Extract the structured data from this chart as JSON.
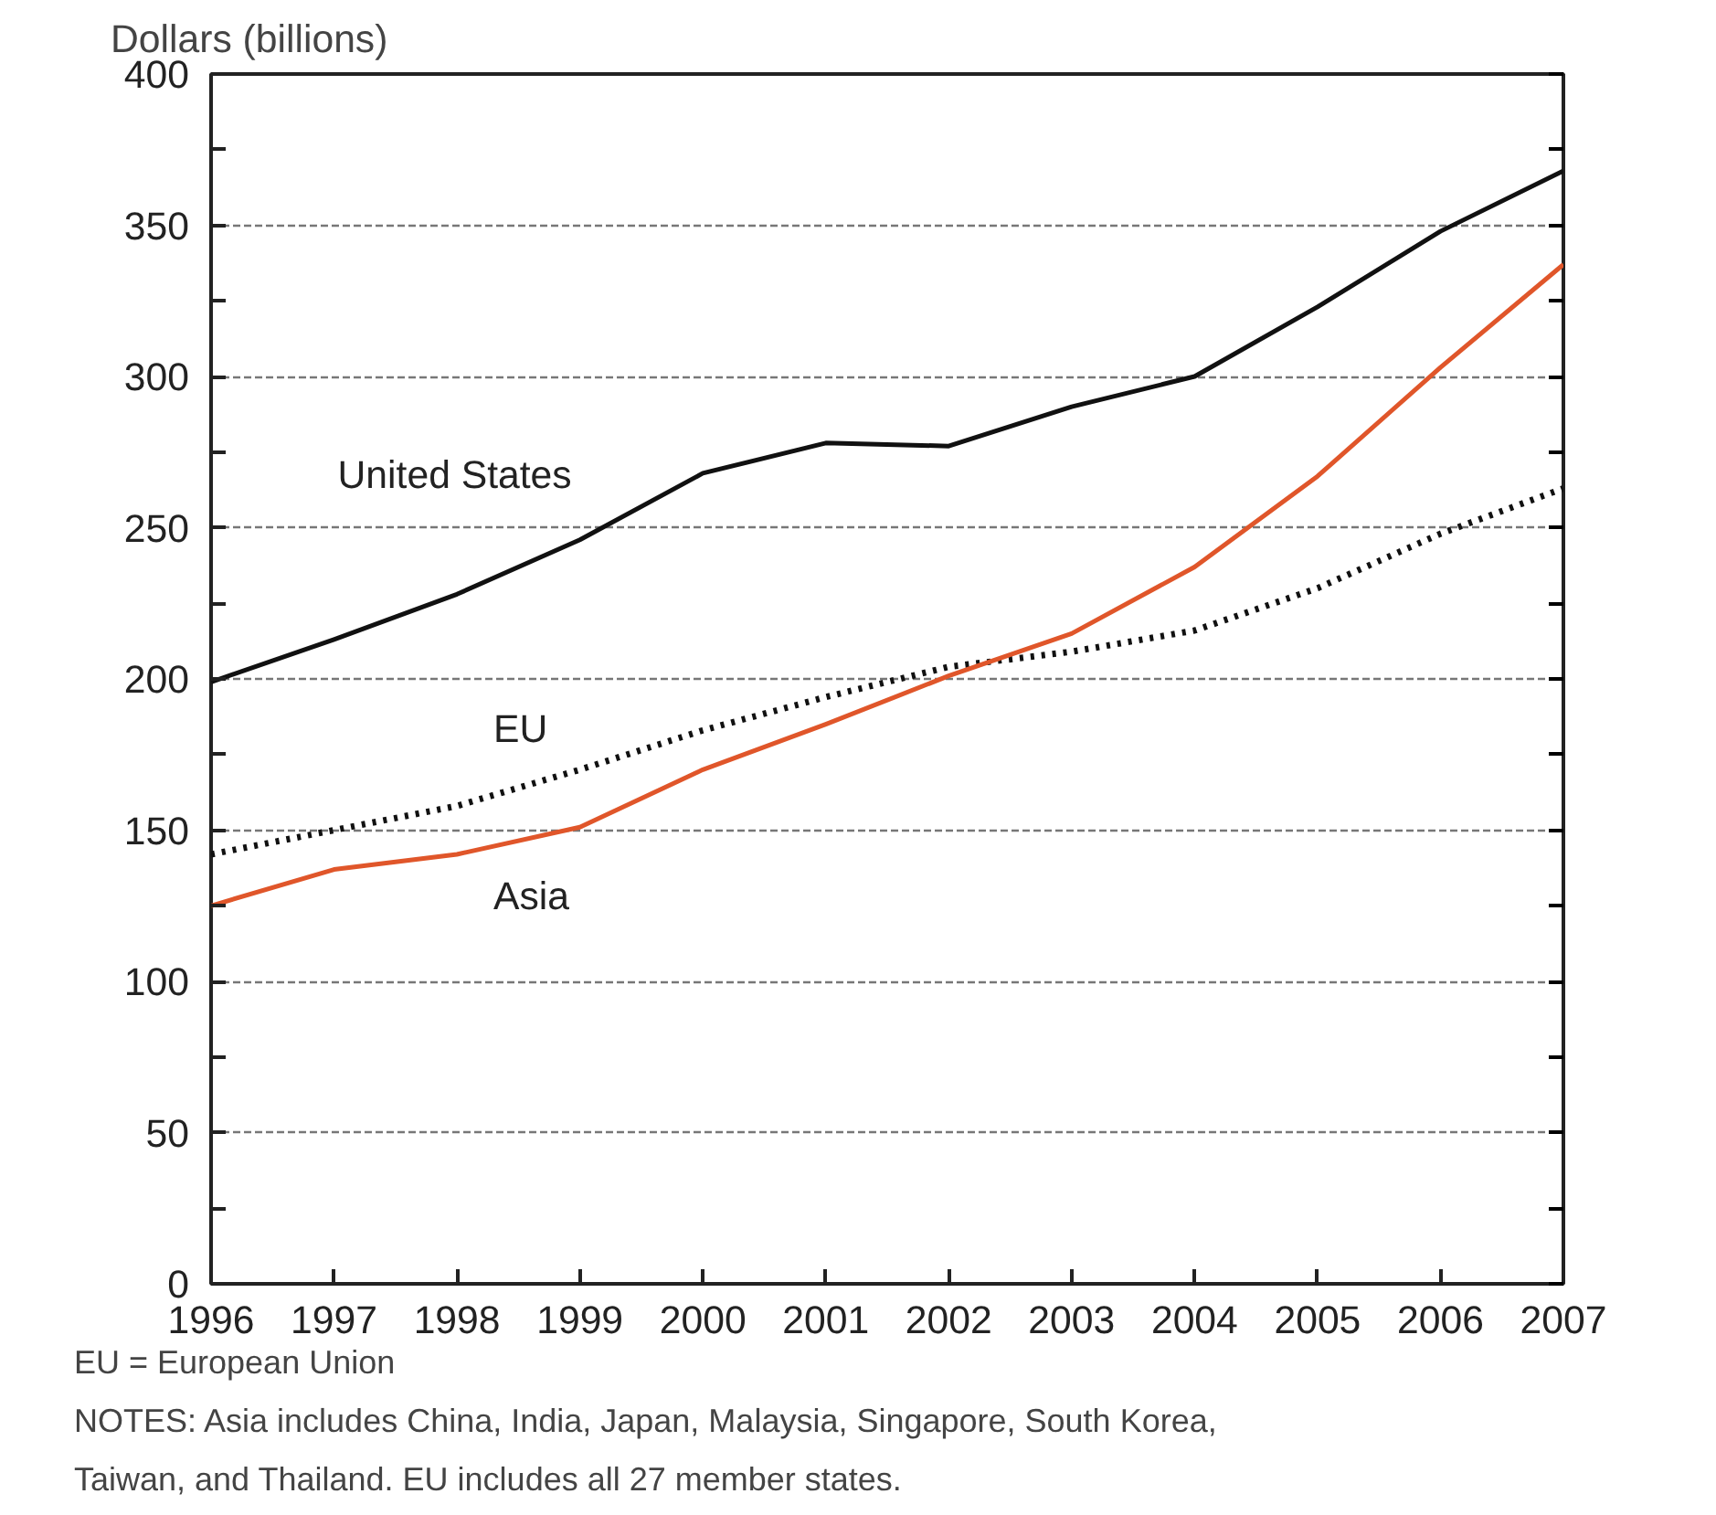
{
  "chart_data": {
    "type": "line",
    "ylabel": "Dollars (billions)",
    "x": [
      1996,
      1997,
      1998,
      1999,
      2000,
      2001,
      2002,
      2003,
      2004,
      2005,
      2006,
      2007
    ],
    "series": [
      {
        "name": "United States",
        "color": "#111111",
        "line_style": "solid",
        "values": [
          199,
          213,
          228,
          246,
          268,
          278,
          277,
          290,
          300,
          323,
          348,
          368
        ]
      },
      {
        "name": "EU",
        "color": "#111111",
        "line_style": "dotted",
        "values": [
          142,
          150,
          158,
          170,
          183,
          194,
          204,
          209,
          216,
          230,
          248,
          263
        ]
      },
      {
        "name": "Asia",
        "color": "#e0562a",
        "line_style": "solid",
        "values": [
          125,
          137,
          142,
          151,
          170,
          185,
          201,
          215,
          237,
          267,
          303,
          337
        ]
      }
    ],
    "xlim": [
      1996,
      2007
    ],
    "xticks": [
      1996,
      1997,
      1998,
      1999,
      2000,
      2001,
      2002,
      2003,
      2004,
      2005,
      2006,
      2007
    ],
    "ylim": [
      0,
      400
    ],
    "yticks": [
      0,
      50,
      100,
      150,
      200,
      250,
      300,
      350,
      400
    ],
    "grid": "y",
    "legend": false,
    "marker": "none",
    "annotations": [
      "EU = European Union",
      "NOTES: Asia includes China, India, Japan, Malaysia, Singapore, South Korea,",
      "Taiwan, and Thailand. EU includes all 27 member states."
    ]
  }
}
